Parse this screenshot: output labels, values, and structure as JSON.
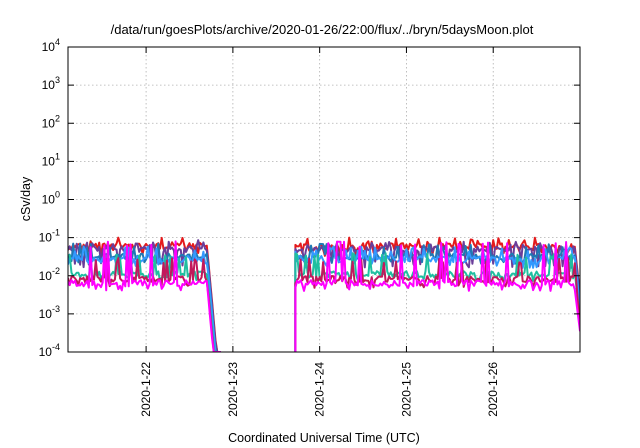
{
  "chart_data": {
    "type": "line",
    "title": "/data/run/goesPlots/archive/2020-01-26/22:00/flux/../bryn/5daysMoon.plot",
    "xlabel": "Coordinated Universal Time (UTC)",
    "ylabel": "cSv/day",
    "yscale": "log",
    "ylim": [
      0.0001,
      10000
    ],
    "xlim": [
      21.1,
      27.0
    ],
    "y_ticks": [
      {
        "value": 0.0001,
        "base": "10",
        "exp": "-4"
      },
      {
        "value": 0.001,
        "base": "10",
        "exp": "-3"
      },
      {
        "value": 0.01,
        "base": "10",
        "exp": "-2"
      },
      {
        "value": 0.1,
        "base": "10",
        "exp": "-1"
      },
      {
        "value": 1,
        "base": "10",
        "exp": "0"
      },
      {
        "value": 10,
        "base": "10",
        "exp": "1"
      },
      {
        "value": 100,
        "base": "10",
        "exp": "2"
      },
      {
        "value": 1000,
        "base": "10",
        "exp": "3"
      },
      {
        "value": 10000,
        "base": "10",
        "exp": "4"
      }
    ],
    "x_ticks": [
      {
        "value": 22,
        "label": "2020-1-22"
      },
      {
        "value": 23,
        "label": "2020-1-23"
      },
      {
        "value": 24,
        "label": "2020-1-24"
      },
      {
        "value": 25,
        "label": "2020-1-25"
      },
      {
        "value": 26,
        "label": "2020-1-26"
      }
    ],
    "grid": true,
    "data_gap": [
      22.85,
      23.72
    ],
    "series": [
      {
        "color": "#e41a1c",
        "level": 0.065,
        "spike": 0.1,
        "dip": 0.04
      },
      {
        "color": "#6a3d9a",
        "level": 0.055,
        "spike": 0.09,
        "dip": 0.02
      },
      {
        "color": "#1f78b4",
        "level": 0.035,
        "spike": 0.07,
        "dip": 0.025
      },
      {
        "color": "#3399ff",
        "level": 0.03,
        "spike": 0.06,
        "dip": 0.02
      },
      {
        "color": "#1fbfa0",
        "level": 0.012,
        "spike": 0.04,
        "dip": 0.009
      },
      {
        "color": "#c2185b",
        "level": 0.009,
        "spike": 0.03,
        "dip": 0.006
      },
      {
        "color": "#ff00ff",
        "level": 0.007,
        "spike": 0.08,
        "dip": 0.005
      }
    ]
  }
}
